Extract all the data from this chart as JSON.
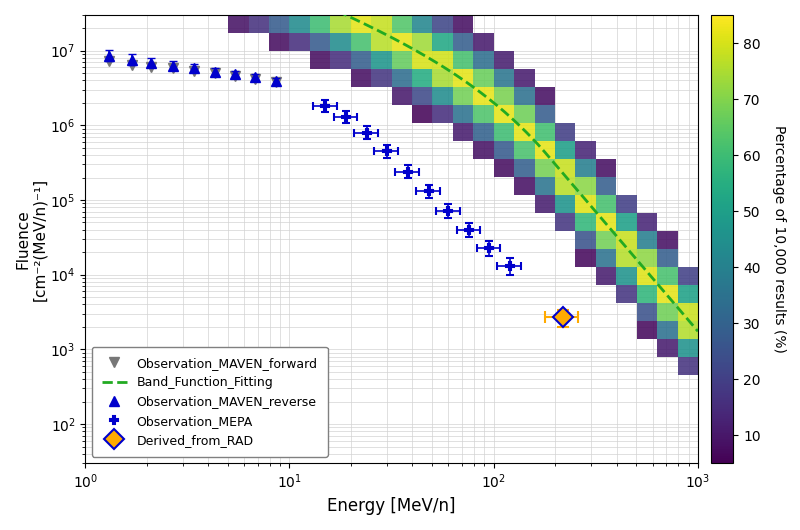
{
  "xlabel": "Energy [MeV/n]",
  "ylabel": "Fluence\n[cm⁻²(MeV/n)⁻¹]",
  "xlim": [
    1,
    1000
  ],
  "ylim": [
    30,
    30000000.0
  ],
  "colorbar_label": "Percentage of 10,000 results (%)",
  "colorbar_ticks": [
    10,
    20,
    30,
    40,
    50,
    60,
    70,
    80
  ],
  "colormap": "viridis",
  "band_fit_color": "#22aa22",
  "maven_forward_color": "#777777",
  "maven_reverse_color": "#0000cc",
  "mepa_color": "#0000cc",
  "rad_color": "#ffaa00",
  "legend_labels": [
    "Observation_MAVEN_forward",
    "Band_Function_Fitting",
    "Observation_MAVEN_reverse",
    "Observation_MEPA",
    "Derived_from_RAD"
  ],
  "maven_forward_x": [
    1.3,
    1.7,
    2.1,
    2.7,
    3.4,
    4.3,
    5.4,
    6.8,
    8.6
  ],
  "maven_forward_y": [
    7200000,
    6500000,
    6100000,
    5800000,
    5400000,
    5000000,
    4600000,
    4200000,
    3800000
  ],
  "maven_reverse_x": [
    1.3,
    1.7,
    2.1,
    2.7,
    3.4,
    4.3,
    5.4,
    6.8,
    8.6
  ],
  "maven_reverse_y": [
    8500000,
    7500000,
    6800000,
    6300000,
    5800000,
    5200000,
    4800000,
    4400000,
    3900000
  ],
  "maven_reverse_yerr_low": [
    1200000,
    1000000,
    850000,
    750000,
    650000,
    550000,
    480000,
    420000,
    360000
  ],
  "maven_reverse_yerr_high": [
    1800000,
    1400000,
    1100000,
    950000,
    800000,
    700000,
    600000,
    520000,
    440000
  ],
  "mepa_x": [
    15.0,
    19.0,
    24.0,
    30.0,
    38.0,
    48.0,
    60.0,
    76.0,
    95.0,
    120.0
  ],
  "mepa_y": [
    1800000,
    1300000,
    800000,
    450000,
    240000,
    130000,
    72000,
    40000,
    23000,
    13000
  ],
  "mepa_xerr_low": [
    2.0,
    2.5,
    3.2,
    4.0,
    5.0,
    6.5,
    8.0,
    10.0,
    12.5,
    16.0
  ],
  "mepa_xerr_high": [
    2.0,
    2.5,
    3.2,
    4.0,
    5.0,
    6.5,
    8.0,
    10.0,
    12.5,
    16.0
  ],
  "mepa_yerr_low": [
    300000,
    220000,
    140000,
    80000,
    45000,
    25000,
    14000,
    8000,
    5000,
    3000
  ],
  "mepa_yerr_high": [
    350000,
    260000,
    170000,
    95000,
    52000,
    28000,
    16000,
    9000,
    5500,
    3500
  ],
  "rad_x": [
    218
  ],
  "rad_y": [
    2700
  ],
  "rad_xerr_low": [
    40
  ],
  "rad_xerr_high": [
    40
  ],
  "rad_yerr_low": [
    700
  ],
  "rad_yerr_high": [
    700
  ],
  "band_A": 6500000.0,
  "band_alpha": -1.05,
  "band_beta": -3.2,
  "band_E0": 85.0
}
